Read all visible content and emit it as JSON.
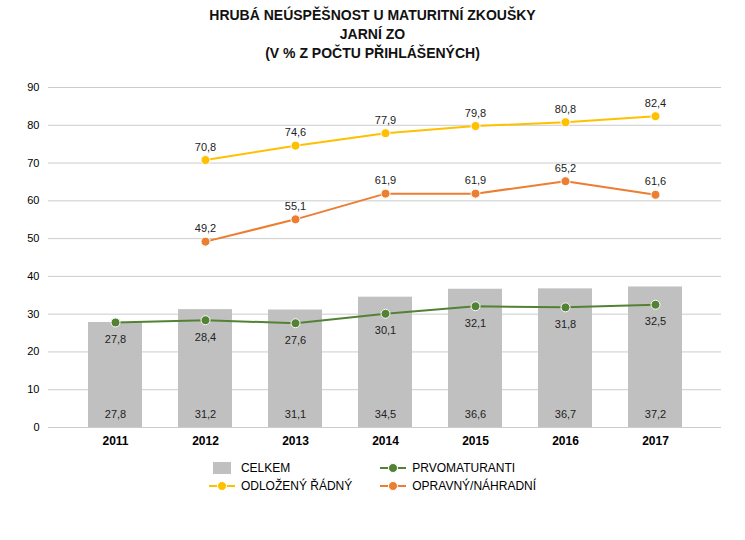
{
  "chart_data": {
    "type": "bar",
    "title": "HRUBÁ NEÚSPĚŠNOST U MATURITNÍ ZKOUŠKY\nJARNÍ ZO\n(V % Z POČTU PŘIHLÁŠENÝCH)",
    "categories": [
      "2011",
      "2012",
      "2013",
      "2014",
      "2015",
      "2016",
      "2017"
    ],
    "series": [
      {
        "name": "CELKEM",
        "type": "bar",
        "color": "#c0c0c0",
        "values": [
          27.8,
          31.2,
          31.1,
          34.5,
          36.6,
          36.7,
          37.2
        ],
        "value_labels": [
          "27,8",
          "31,2",
          "31,1",
          "34,5",
          "36,6",
          "36,7",
          "37,2"
        ]
      },
      {
        "name": "PRVOMATURANTI",
        "type": "line",
        "color": "#548235",
        "marker": "circle",
        "values": [
          27.8,
          28.4,
          27.6,
          30.1,
          32.1,
          31.8,
          32.5
        ],
        "value_labels": [
          "27,8",
          "28,4",
          "27,6",
          "30,1",
          "32,1",
          "31,8",
          "32,5"
        ]
      },
      {
        "name": "ODLOŽENÝ ŘÁDNÝ",
        "type": "line",
        "color": "#ffc000",
        "marker": "circle",
        "values": [
          null,
          70.8,
          74.6,
          77.9,
          79.8,
          80.8,
          82.4
        ],
        "value_labels": [
          null,
          "70,8",
          "74,6",
          "77,9",
          "79,8",
          "80,8",
          "82,4"
        ]
      },
      {
        "name": "OPRAVNÝ/NÁHRADNÍ",
        "type": "line",
        "color": "#ed7d31",
        "marker": "circle",
        "values": [
          null,
          49.2,
          55.1,
          61.9,
          61.9,
          65.2,
          61.6
        ],
        "value_labels": [
          null,
          "49,2",
          "55,1",
          "61,9",
          "61,9",
          "65,2",
          "61,6"
        ]
      }
    ],
    "ylim": [
      0,
      90
    ],
    "yticks": [
      0,
      10,
      20,
      30,
      40,
      50,
      60,
      70,
      80,
      90
    ],
    "grid": true,
    "data_labels": true,
    "legend": "bottom"
  }
}
